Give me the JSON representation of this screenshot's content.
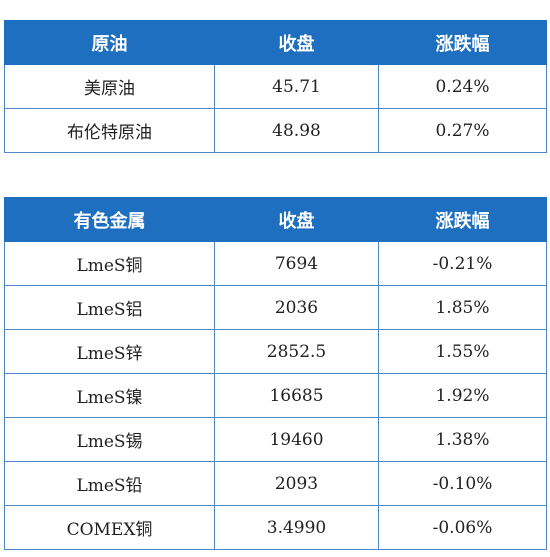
{
  "colors": {
    "header_bg": "#1f6fc0",
    "header_text": "#ffffff",
    "border": "#4f86c6",
    "up": "#e02020",
    "down": "#0a8a2a"
  },
  "crude_table": {
    "headers": [
      "原油",
      "收盘",
      "涨跌幅"
    ],
    "rows": [
      {
        "name": "美原油",
        "close": "45.71",
        "change": "0.24%",
        "direction": "up"
      },
      {
        "name": "布伦特原油",
        "close": "48.98",
        "change": "0.27%",
        "direction": "up"
      }
    ]
  },
  "metals_table": {
    "headers": [
      "有色金属",
      "收盘",
      "涨跌幅"
    ],
    "rows": [
      {
        "name": "LmeS铜",
        "close": "7694",
        "change": "-0.21%",
        "direction": "down"
      },
      {
        "name": "LmeS铝",
        "close": "2036",
        "change": "1.85%",
        "direction": "up"
      },
      {
        "name": "LmeS锌",
        "close": "2852.5",
        "change": "1.55%",
        "direction": "up"
      },
      {
        "name": "LmeS镍",
        "close": "16685",
        "change": "1.92%",
        "direction": "up"
      },
      {
        "name": "LmeS锡",
        "close": "19460",
        "change": "1.38%",
        "direction": "up"
      },
      {
        "name": "LmeS铅",
        "close": "2093",
        "change": "-0.10%",
        "direction": "down"
      },
      {
        "name": "COMEX铜",
        "close": "3.4990",
        "change": "-0.06%",
        "direction": "down"
      }
    ]
  }
}
